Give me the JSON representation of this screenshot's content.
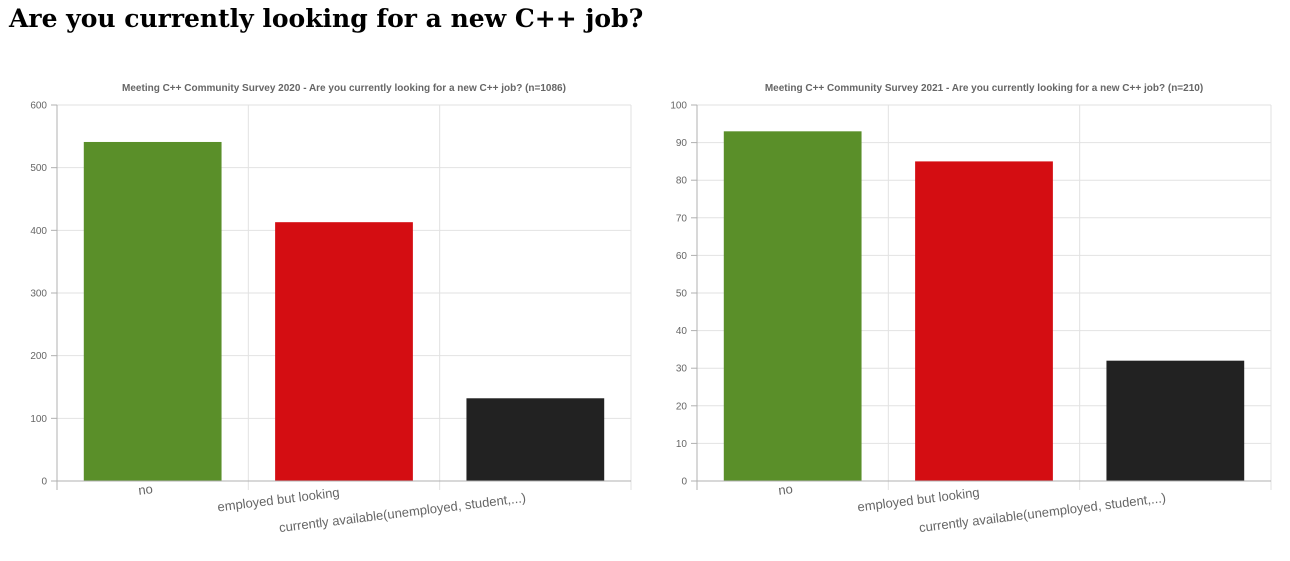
{
  "page": {
    "title": "Are you currently looking for a new C++ job?"
  },
  "colors": {
    "no": "#5a8f29",
    "employed": "#d40d12",
    "available": "#222222",
    "grid": "#e2e2e2",
    "axis": "#b0b0b0",
    "text": "#666666"
  },
  "chart_data": [
    {
      "type": "bar",
      "title": "Meeting C++ Community Survey 2020 - Are you currently looking for a new C++ job? (n=1086)",
      "categories": [
        "no",
        "employed but looking",
        "currently available(unemployed, student,...)"
      ],
      "values": [
        541,
        413,
        132
      ],
      "ylim": [
        0,
        600
      ],
      "yticks": [
        "0",
        "100",
        "200",
        "300",
        "400",
        "500",
        "600"
      ],
      "xlabel": "",
      "ylabel": "",
      "grid": true
    },
    {
      "type": "bar",
      "title": "Meeting C++ Community Survey 2021  - Are you currently looking for a new C++ job? (n=210)",
      "categories": [
        "no",
        "employed but looking",
        "currently available(unemployed, student,...)"
      ],
      "values": [
        93,
        85,
        32
      ],
      "ylim": [
        0,
        100
      ],
      "yticks": [
        "0",
        "10",
        "20",
        "30",
        "40",
        "50",
        "60",
        "70",
        "80",
        "90",
        "100"
      ],
      "xlabel": "",
      "ylabel": "",
      "grid": true
    }
  ]
}
